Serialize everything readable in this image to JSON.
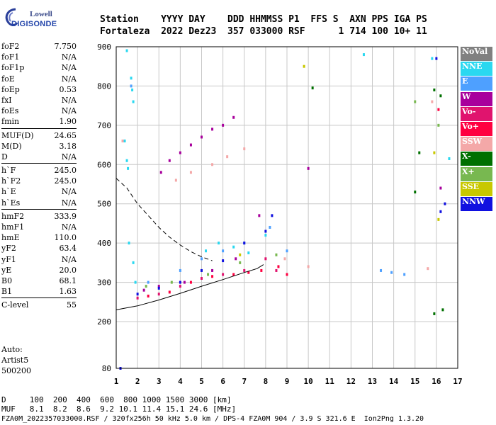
{
  "logo": {
    "line1": "Lowell",
    "line2": "DIGISONDE"
  },
  "header": {
    "row1": "Station    YYYY DAY    DDD HHMMSS P1  FFS S  AXN PPS IGA PS",
    "row2": "Fortaleza  2022 Dez23  357 033000 RSF      1 714 100 10+ 11"
  },
  "params": [
    {
      "k": "foF2",
      "v": "7.750"
    },
    {
      "k": "foF1",
      "v": "N/A"
    },
    {
      "k": "foF1p",
      "v": "N/A"
    },
    {
      "k": "foE",
      "v": "N/A"
    },
    {
      "k": "foEp",
      "v": "0.53"
    },
    {
      "k": "fxI",
      "v": "N/A"
    },
    {
      "k": "foEs",
      "v": "N/A"
    },
    {
      "k": "fmin",
      "v": "1.90"
    },
    {
      "k": "MUF(D)",
      "v": "24.65",
      "sep": true
    },
    {
      "k": "M(D)",
      "v": "3.18"
    },
    {
      "k": "D",
      "v": "N/A"
    },
    {
      "k": "h`F",
      "v": "245.0",
      "sep": true
    },
    {
      "k": "h`F2",
      "v": "245.0"
    },
    {
      "k": "h`E",
      "v": "N/A"
    },
    {
      "k": "h`Es",
      "v": "N/A"
    },
    {
      "k": "hmF2",
      "v": "333.9",
      "sep": true
    },
    {
      "k": "hmF1",
      "v": "N/A"
    },
    {
      "k": "hmE",
      "v": "110.0"
    },
    {
      "k": "yF2",
      "v": "63.4"
    },
    {
      "k": "yF1",
      "v": "N/A"
    },
    {
      "k": "yE",
      "v": "20.0"
    },
    {
      "k": "B0",
      "v": "68.1"
    },
    {
      "k": "B1",
      "v": "1.63"
    },
    {
      "k": "C-level",
      "v": "55",
      "sep": true
    }
  ],
  "auto": {
    "line1": "Auto:",
    "line2": "Artist5",
    "line3": "500200"
  },
  "legend": [
    {
      "label": "NoVal",
      "color": "#808080"
    },
    {
      "label": "NNE",
      "color": "#2ad8f0"
    },
    {
      "label": "E",
      "color": "#4ea0ff"
    },
    {
      "label": "W",
      "color": "#a8009c"
    },
    {
      "label": "Vo-",
      "color": "#e0146e"
    },
    {
      "label": "Vo+",
      "color": "#ff0040"
    },
    {
      "label": "SSW",
      "color": "#f4a8a8"
    },
    {
      "label": "X-",
      "color": "#007000"
    },
    {
      "label": "X+",
      "color": "#78b850"
    },
    {
      "label": "SSE",
      "color": "#c8c800"
    },
    {
      "label": "NNW",
      "color": "#1010e0"
    }
  ],
  "footer": {
    "row1": "D     100  200  400  600  800 1000 1500 3000 [km]",
    "row2": "MUF   8.1  8.2  8.6  9.2 10.1 11.4 15.1 24.6 [MHz]",
    "row3": "FZA0M_2022357033000.RSF / 320fx256h 50 kHz 5.0 km / DPS-4 FZA0M 904 / 3.9 S 321.6 E  Ion2Png 1.3.20"
  },
  "chart_data": {
    "type": "scatter",
    "title": "",
    "xlabel": "",
    "ylabel": "",
    "xlim": [
      1,
      17
    ],
    "ylim": [
      80,
      900
    ],
    "x_ticks": [
      1,
      2,
      3,
      4,
      5,
      6,
      7,
      8,
      9,
      10,
      11,
      12,
      13,
      14,
      15,
      16,
      17
    ],
    "y_ticks": [
      80,
      200,
      300,
      400,
      500,
      600,
      700,
      800,
      900
    ],
    "grid": true,
    "legend_position": "right",
    "series": [
      {
        "name": "NNE",
        "color": "#2ad8f0",
        "points": [
          [
            1.5,
            890
          ],
          [
            1.7,
            820
          ],
          [
            1.75,
            790
          ],
          [
            1.8,
            760
          ],
          [
            1.4,
            660
          ],
          [
            1.5,
            610
          ],
          [
            1.55,
            590
          ],
          [
            1.6,
            400
          ],
          [
            1.8,
            350
          ],
          [
            1.9,
            300
          ],
          [
            5.2,
            380
          ],
          [
            5.8,
            400
          ],
          [
            6.5,
            390
          ],
          [
            7.2,
            375
          ],
          [
            8.0,
            420
          ],
          [
            12.6,
            880
          ],
          [
            15.8,
            870
          ],
          [
            16.6,
            615
          ]
        ]
      },
      {
        "name": "E",
        "color": "#4ea0ff",
        "points": [
          [
            1.7,
            800
          ],
          [
            2.5,
            300
          ],
          [
            4.0,
            330
          ],
          [
            5.0,
            360
          ],
          [
            6.0,
            380
          ],
          [
            7.0,
            400
          ],
          [
            8.2,
            440
          ],
          [
            9.0,
            380
          ],
          [
            13.4,
            330
          ],
          [
            13.9,
            325
          ],
          [
            14.5,
            320
          ]
        ]
      },
      {
        "name": "W",
        "color": "#a8009c",
        "points": [
          [
            3.1,
            580
          ],
          [
            3.5,
            610
          ],
          [
            4.0,
            630
          ],
          [
            4.5,
            650
          ],
          [
            5.0,
            670
          ],
          [
            5.5,
            690
          ],
          [
            6.0,
            700
          ],
          [
            6.5,
            720
          ],
          [
            2.3,
            280
          ],
          [
            3.0,
            290
          ],
          [
            4.2,
            300
          ],
          [
            5.5,
            330
          ],
          [
            6.6,
            360
          ],
          [
            7.7,
            470
          ],
          [
            10.0,
            590
          ],
          [
            16.2,
            540
          ]
        ]
      },
      {
        "name": "Vo-",
        "color": "#e0146e",
        "points": [
          [
            2.0,
            260
          ],
          [
            3.0,
            270
          ],
          [
            4.0,
            290
          ],
          [
            5.0,
            310
          ],
          [
            6.0,
            320
          ],
          [
            7.0,
            330
          ],
          [
            8.0,
            360
          ],
          [
            8.5,
            330
          ]
        ]
      },
      {
        "name": "Vo+",
        "color": "#ff0040",
        "points": [
          [
            2.5,
            265
          ],
          [
            3.5,
            275
          ],
          [
            4.5,
            300
          ],
          [
            5.5,
            315
          ],
          [
            6.5,
            320
          ],
          [
            7.2,
            325
          ],
          [
            7.8,
            330
          ],
          [
            8.6,
            340
          ],
          [
            9.0,
            320
          ],
          [
            16.1,
            740
          ]
        ]
      },
      {
        "name": "SSW",
        "color": "#f4a8a8",
        "points": [
          [
            1.3,
            660
          ],
          [
            3.8,
            560
          ],
          [
            4.5,
            580
          ],
          [
            5.5,
            600
          ],
          [
            6.2,
            620
          ],
          [
            7.0,
            640
          ],
          [
            8.9,
            360
          ],
          [
            10.0,
            340
          ],
          [
            15.6,
            335
          ],
          [
            15.8,
            760
          ]
        ]
      },
      {
        "name": "X-",
        "color": "#007000",
        "points": [
          [
            10.2,
            795
          ],
          [
            15.0,
            530
          ],
          [
            15.2,
            630
          ],
          [
            15.9,
            790
          ],
          [
            16.2,
            775
          ],
          [
            16.3,
            230
          ],
          [
            15.9,
            220
          ]
        ]
      },
      {
        "name": "X+",
        "color": "#78b850",
        "points": [
          [
            2.4,
            290
          ],
          [
            3.6,
            300
          ],
          [
            5.3,
            320
          ],
          [
            6.8,
            350
          ],
          [
            8.5,
            370
          ],
          [
            15.0,
            760
          ],
          [
            16.1,
            700
          ]
        ]
      },
      {
        "name": "SSE",
        "color": "#c8c800",
        "points": [
          [
            6.8,
            370
          ],
          [
            9.8,
            850
          ],
          [
            15.9,
            630
          ],
          [
            16.1,
            460
          ]
        ]
      },
      {
        "name": "NNW",
        "color": "#1010e0",
        "points": [
          [
            2.0,
            270
          ],
          [
            3.0,
            285
          ],
          [
            4.0,
            300
          ],
          [
            5.0,
            330
          ],
          [
            6.0,
            355
          ],
          [
            7.0,
            400
          ],
          [
            8.0,
            430
          ],
          [
            8.3,
            470
          ],
          [
            16.0,
            870
          ],
          [
            16.2,
            480
          ],
          [
            16.4,
            500
          ],
          [
            1.2,
            80
          ]
        ]
      }
    ],
    "curves": [
      {
        "kind": "dashed",
        "points": [
          [
            1.0,
            565
          ],
          [
            1.5,
            540
          ],
          [
            2.0,
            500
          ],
          [
            2.5,
            470
          ],
          [
            3.0,
            440
          ],
          [
            3.5,
            415
          ],
          [
            4.0,
            395
          ],
          [
            4.5,
            378
          ],
          [
            5.0,
            365
          ],
          [
            5.5,
            355
          ]
        ]
      },
      {
        "kind": "solid",
        "points": [
          [
            1.0,
            230
          ],
          [
            2.0,
            240
          ],
          [
            3.0,
            255
          ],
          [
            4.0,
            272
          ],
          [
            5.0,
            290
          ],
          [
            6.0,
            307
          ],
          [
            7.0,
            325
          ],
          [
            7.6,
            335
          ],
          [
            7.9,
            345
          ]
        ]
      }
    ]
  }
}
